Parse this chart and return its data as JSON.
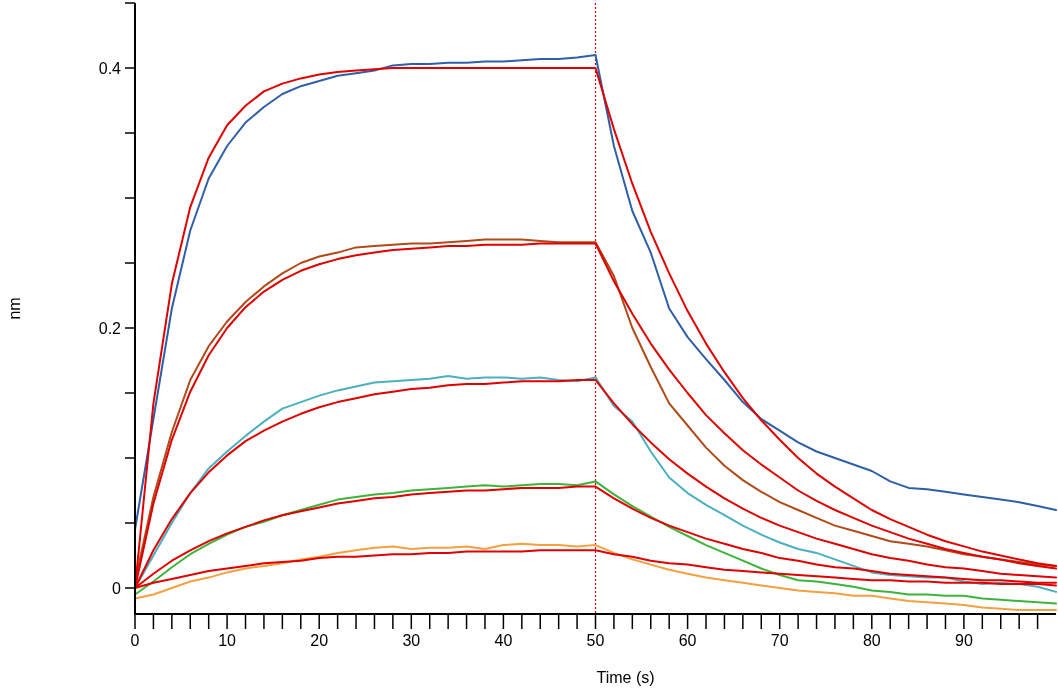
{
  "chart_data": {
    "type": "line",
    "xlabel": "Time (s)",
    "ylabel": "nm",
    "xlim": [
      0,
      100
    ],
    "ylim": [
      -0.02,
      0.45
    ],
    "xticks": [
      0,
      {
        "value": 2,
        "label": null
      },
      {
        "value": 4,
        "label": null
      },
      {
        "value": 6,
        "label": null
      },
      {
        "value": 8,
        "label": null
      },
      10,
      {
        "value": 12,
        "label": null
      },
      {
        "value": 14,
        "label": null
      },
      {
        "value": 16,
        "label": null
      },
      {
        "value": 18,
        "label": null
      },
      20,
      {
        "value": 22,
        "label": null
      },
      {
        "value": 24,
        "label": null
      },
      {
        "value": 26,
        "label": null
      },
      {
        "value": 28,
        "label": null
      },
      30,
      {
        "value": 32,
        "label": null
      },
      {
        "value": 34,
        "label": null
      },
      {
        "value": 36,
        "label": null
      },
      {
        "value": 38,
        "label": null
      },
      40,
      {
        "value": 42,
        "label": null
      },
      {
        "value": 44,
        "label": null
      },
      {
        "value": 46,
        "label": null
      },
      {
        "value": 48,
        "label": null
      },
      50,
      {
        "value": 52,
        "label": null
      },
      {
        "value": 54,
        "label": null
      },
      {
        "value": 56,
        "label": null
      },
      {
        "value": 58,
        "label": null
      },
      60,
      {
        "value": 62,
        "label": null
      },
      {
        "value": 64,
        "label": null
      },
      {
        "value": 66,
        "label": null
      },
      {
        "value": 68,
        "label": null
      },
      70,
      {
        "value": 72,
        "label": null
      },
      {
        "value": 74,
        "label": null
      },
      {
        "value": 76,
        "label": null
      },
      {
        "value": 78,
        "label": null
      },
      80,
      {
        "value": 82,
        "label": null
      },
      {
        "value": 84,
        "label": null
      },
      {
        "value": 86,
        "label": null
      },
      {
        "value": 88,
        "label": null
      },
      90,
      {
        "value": 92,
        "label": null
      },
      {
        "value": 94,
        "label": null
      },
      {
        "value": 96,
        "label": null
      },
      {
        "value": 98,
        "label": null
      }
    ],
    "yticks": [
      0,
      {
        "value": 0.05,
        "label": null
      },
      {
        "value": 0.1,
        "label": null
      },
      {
        "value": 0.15,
        "label": null
      },
      0.2,
      {
        "value": 0.25,
        "label": null
      },
      {
        "value": 0.3,
        "label": null
      },
      {
        "value": 0.35,
        "label": null
      },
      0.4,
      {
        "value": 0.45,
        "label": null
      }
    ],
    "ref_lines": [
      {
        "axis": "x",
        "value": 50,
        "color": "#cc0000",
        "line_style": "dotted"
      }
    ],
    "x": [
      0,
      2,
      4,
      6,
      8,
      10,
      12,
      14,
      16,
      18,
      20,
      22,
      24,
      26,
      28,
      30,
      32,
      34,
      36,
      38,
      40,
      42,
      44,
      46,
      48,
      50,
      52,
      54,
      56,
      58,
      60,
      62,
      64,
      66,
      68,
      70,
      72,
      74,
      76,
      78,
      80,
      82,
      84,
      86,
      88,
      90,
      92,
      94,
      96,
      98,
      100
    ],
    "series": [
      {
        "color": "#2f5fa8",
        "values": [
          0.045,
          0.13,
          0.215,
          0.275,
          0.315,
          0.34,
          0.358,
          0.37,
          0.38,
          0.386,
          0.39,
          0.394,
          0.396,
          0.398,
          0.402,
          0.403,
          0.403,
          0.404,
          0.404,
          0.405,
          0.405,
          0.406,
          0.407,
          0.407,
          0.408,
          0.41,
          0.34,
          0.29,
          0.258,
          0.215,
          0.193,
          0.176,
          0.16,
          0.143,
          0.13,
          0.121,
          0.112,
          0.105,
          0.1,
          0.095,
          0.09,
          0.082,
          0.077,
          0.076,
          0.074,
          0.072,
          0.07,
          0.068,
          0.066,
          0.063,
          0.06
        ]
      },
      {
        "color": "#b04a18",
        "values": [
          0.005,
          0.07,
          0.12,
          0.16,
          0.186,
          0.205,
          0.22,
          0.232,
          0.242,
          0.25,
          0.255,
          0.258,
          0.262,
          0.263,
          0.264,
          0.265,
          0.265,
          0.266,
          0.267,
          0.268,
          0.268,
          0.268,
          0.267,
          0.266,
          0.266,
          0.266,
          0.24,
          0.2,
          0.17,
          0.142,
          0.125,
          0.108,
          0.094,
          0.083,
          0.074,
          0.066,
          0.06,
          0.054,
          0.048,
          0.044,
          0.04,
          0.036,
          0.034,
          0.032,
          0.029,
          0.026,
          0.024,
          0.022,
          0.02,
          0.018,
          0.017
        ]
      },
      {
        "color": "#4ab0c0",
        "values": [
          0,
          0.025,
          0.05,
          0.073,
          0.092,
          0.105,
          0.117,
          0.128,
          0.138,
          0.143,
          0.148,
          0.152,
          0.155,
          0.158,
          0.159,
          0.16,
          0.161,
          0.163,
          0.161,
          0.162,
          0.162,
          0.161,
          0.162,
          0.16,
          0.159,
          0.162,
          0.14,
          0.128,
          0.105,
          0.085,
          0.073,
          0.064,
          0.056,
          0.048,
          0.041,
          0.035,
          0.03,
          0.027,
          0.022,
          0.017,
          0.012,
          0.01,
          0.009,
          0.008,
          0.008,
          0.005,
          0.003,
          0.004,
          0.003,
          0.001,
          -0.003
        ]
      },
      {
        "color": "#3cb43c",
        "values": [
          -0.005,
          0.005,
          0.016,
          0.026,
          0.034,
          0.041,
          0.047,
          0.051,
          0.056,
          0.06,
          0.064,
          0.068,
          0.07,
          0.072,
          0.073,
          0.075,
          0.076,
          0.077,
          0.078,
          0.079,
          0.078,
          0.079,
          0.08,
          0.08,
          0.079,
          0.082,
          0.072,
          0.063,
          0.055,
          0.047,
          0.04,
          0.033,
          0.027,
          0.021,
          0.015,
          0.01,
          0.006,
          0.005,
          0.003,
          0.001,
          -0.002,
          -0.003,
          -0.005,
          -0.005,
          -0.006,
          -0.006,
          -0.008,
          -0.009,
          -0.01,
          -0.011,
          -0.012
        ]
      },
      {
        "color": "#f5a040",
        "values": [
          -0.008,
          -0.005,
          0,
          0.005,
          0.008,
          0.012,
          0.015,
          0.017,
          0.019,
          0.022,
          0.024,
          0.027,
          0.029,
          0.031,
          0.032,
          0.03,
          0.031,
          0.031,
          0.032,
          0.03,
          0.033,
          0.034,
          0.033,
          0.033,
          0.032,
          0.033,
          0.027,
          0.022,
          0.018,
          0.014,
          0.011,
          0.008,
          0.006,
          0.004,
          0.002,
          0,
          -0.002,
          -0.003,
          -0.004,
          -0.006,
          -0.006,
          -0.008,
          -0.01,
          -0.011,
          -0.012,
          -0.013,
          -0.015,
          -0.016,
          -0.017,
          -0.017,
          -0.017
        ]
      },
      {
        "color": "#e00000",
        "values": [
          0,
          0.142,
          0.234,
          0.293,
          0.331,
          0.356,
          0.371,
          0.382,
          0.388,
          0.392,
          0.395,
          0.397,
          0.398,
          0.399,
          0.4,
          0.4,
          0.4,
          0.4,
          0.4,
          0.4,
          0.4,
          0.4,
          0.4,
          0.4,
          0.4,
          0.4,
          0.353,
          0.311,
          0.274,
          0.242,
          0.213,
          0.188,
          0.166,
          0.146,
          0.129,
          0.114,
          0.1,
          0.088,
          0.078,
          0.069,
          0.06,
          0.053,
          0.047,
          0.041,
          0.036,
          0.032,
          0.028,
          0.025,
          0.022,
          0.019,
          0.017
        ]
      },
      {
        "color": "#e00000",
        "values": [
          0,
          0.065,
          0.114,
          0.151,
          0.179,
          0.2,
          0.216,
          0.228,
          0.237,
          0.244,
          0.249,
          0.253,
          0.256,
          0.258,
          0.26,
          0.261,
          0.262,
          0.263,
          0.263,
          0.264,
          0.264,
          0.264,
          0.265,
          0.265,
          0.265,
          0.265,
          0.236,
          0.211,
          0.188,
          0.168,
          0.15,
          0.133,
          0.119,
          0.106,
          0.095,
          0.085,
          0.075,
          0.067,
          0.06,
          0.054,
          0.048,
          0.043,
          0.038,
          0.034,
          0.03,
          0.027,
          0.024,
          0.022,
          0.019,
          0.017,
          0.015
        ]
      },
      {
        "color": "#e00000",
        "values": [
          0,
          0.029,
          0.053,
          0.073,
          0.089,
          0.102,
          0.113,
          0.121,
          0.128,
          0.134,
          0.139,
          0.143,
          0.146,
          0.149,
          0.151,
          0.153,
          0.154,
          0.156,
          0.157,
          0.157,
          0.158,
          0.159,
          0.159,
          0.159,
          0.16,
          0.16,
          0.142,
          0.126,
          0.112,
          0.099,
          0.088,
          0.078,
          0.069,
          0.061,
          0.054,
          0.048,
          0.043,
          0.038,
          0.034,
          0.03,
          0.026,
          0.023,
          0.021,
          0.018,
          0.016,
          0.015,
          0.013,
          0.011,
          0.01,
          0.009,
          0.008
        ]
      },
      {
        "color": "#e00000",
        "values": [
          0,
          0.011,
          0.021,
          0.029,
          0.036,
          0.042,
          0.047,
          0.052,
          0.056,
          0.059,
          0.062,
          0.065,
          0.067,
          0.069,
          0.07,
          0.072,
          0.073,
          0.074,
          0.075,
          0.075,
          0.076,
          0.077,
          0.077,
          0.077,
          0.078,
          0.078,
          0.069,
          0.061,
          0.054,
          0.048,
          0.043,
          0.038,
          0.034,
          0.03,
          0.027,
          0.023,
          0.021,
          0.018,
          0.016,
          0.015,
          0.013,
          0.011,
          0.01,
          0.009,
          0.008,
          0.007,
          0.006,
          0.006,
          0.005,
          0.004,
          0.004
        ]
      },
      {
        "color": "#e00000",
        "values": [
          0,
          0.004,
          0.007,
          0.01,
          0.013,
          0.015,
          0.017,
          0.019,
          0.02,
          0.021,
          0.023,
          0.024,
          0.024,
          0.025,
          0.026,
          0.026,
          0.027,
          0.027,
          0.028,
          0.028,
          0.028,
          0.028,
          0.029,
          0.029,
          0.029,
          0.029,
          0.026,
          0.024,
          0.021,
          0.019,
          0.018,
          0.016,
          0.014,
          0.013,
          0.012,
          0.011,
          0.01,
          0.009,
          0.008,
          0.007,
          0.006,
          0.006,
          0.005,
          0.005,
          0.004,
          0.004,
          0.004,
          0.003,
          0.003,
          0.003,
          0.002
        ]
      }
    ]
  }
}
